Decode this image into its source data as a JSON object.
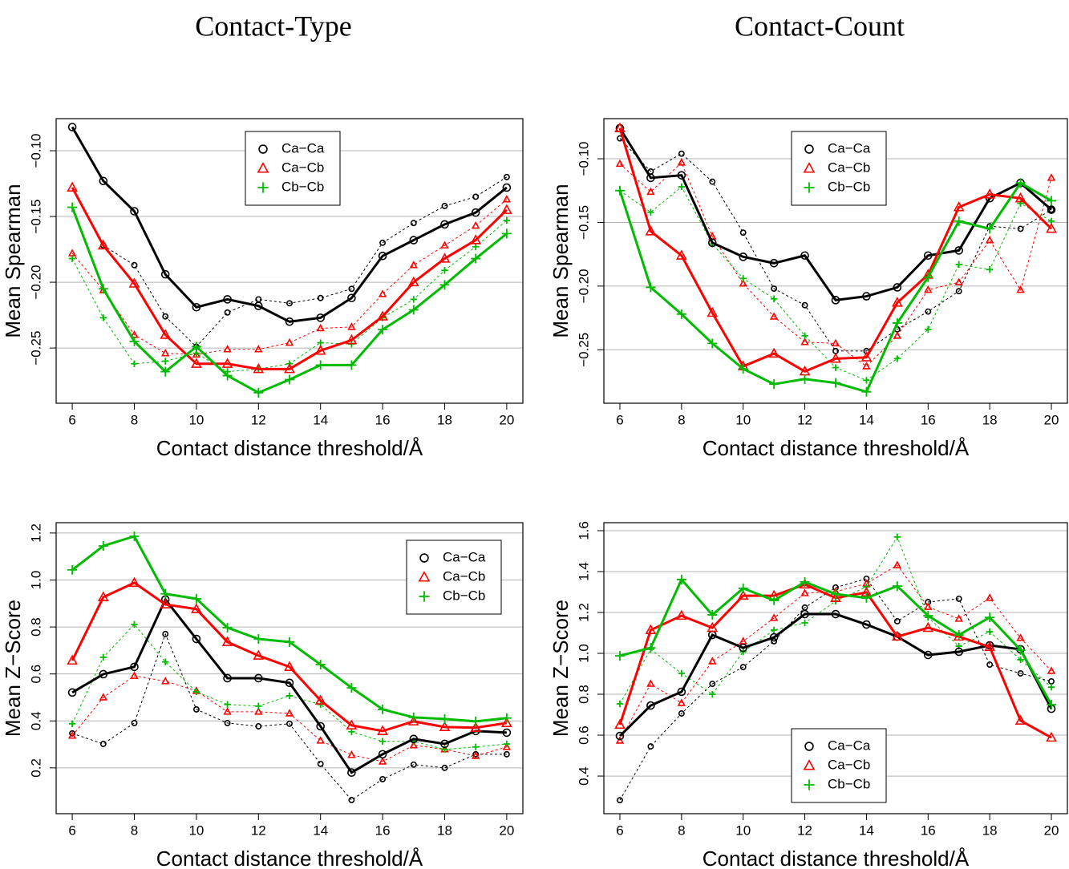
{
  "chart_data": [
    {
      "type": "line",
      "title": "Contact-Type",
      "x_label": "Contact distance threshold/Å",
      "y_label": "Mean Spearman",
      "x": [
        6,
        7,
        8,
        9,
        10,
        11,
        12,
        13,
        14,
        15,
        16,
        17,
        18,
        19,
        20
      ],
      "xlim": [
        5.48,
        20.52
      ],
      "xticks": [
        6,
        8,
        10,
        12,
        14,
        16,
        18,
        20
      ],
      "ylim": [
        -0.292,
        -0.0756
      ],
      "yticks": [
        {
          "value": -0.25,
          "label": "−0.25"
        },
        {
          "value": -0.2,
          "label": "−0.20"
        },
        {
          "value": -0.15,
          "label": "−0.15"
        },
        {
          "value": -0.1,
          "label": "−0.10"
        }
      ],
      "grid": true,
      "legend": "top",
      "series": [
        {
          "name": "Ca−Ca",
          "color": "#000000",
          "marker": "circle",
          "values": [
            -0.082,
            -0.123,
            -0.146,
            -0.194,
            -0.219,
            -0.213,
            -0.218,
            -0.23,
            -0.227,
            -0.212,
            -0.18,
            -0.168,
            -0.156,
            -0.147,
            -0.128
          ],
          "dashed_values": [
            null,
            -0.172,
            -0.187,
            -0.226,
            -0.249,
            -0.223,
            -0.213,
            -0.216,
            -0.212,
            -0.205,
            -0.17,
            -0.155,
            -0.142,
            -0.135,
            -0.12
          ]
        },
        {
          "name": "Ca−Cb",
          "color": "#ff0000",
          "marker": "triangle",
          "values": [
            -0.128,
            -0.172,
            -0.201,
            -0.24,
            -0.262,
            -0.262,
            -0.266,
            -0.266,
            -0.252,
            -0.244,
            -0.226,
            -0.2,
            -0.182,
            -0.168,
            -0.145
          ],
          "dashed_values": [
            -0.178,
            -0.206,
            -0.24,
            -0.254,
            -0.255,
            -0.251,
            -0.251,
            -0.246,
            -0.235,
            -0.234,
            -0.209,
            -0.187,
            -0.172,
            -0.157,
            -0.137
          ]
        },
        {
          "name": "Cb−Cb",
          "color": "#00bb00",
          "marker": "plus",
          "values": [
            -0.143,
            -0.205,
            -0.245,
            -0.268,
            -0.249,
            -0.271,
            -0.284,
            -0.274,
            -0.263,
            -0.263,
            -0.236,
            -0.221,
            -0.202,
            -0.182,
            -0.163
          ],
          "dashed_values": [
            -0.182,
            -0.227,
            -0.262,
            -0.26,
            -0.254,
            -0.268,
            -0.266,
            -0.262,
            -0.246,
            -0.247,
            -0.227,
            -0.213,
            -0.191,
            -0.173,
            -0.153
          ]
        }
      ]
    },
    {
      "type": "line",
      "title": "Contact-Count",
      "x_label": "Contact distance threshold/Å",
      "y_label": "Mean Spearman",
      "x": [
        6,
        7,
        8,
        9,
        10,
        11,
        12,
        13,
        14,
        15,
        16,
        17,
        18,
        19,
        20
      ],
      "xlim": [
        5.48,
        20.52
      ],
      "xticks": [
        6,
        8,
        10,
        12,
        14,
        16,
        18,
        20
      ],
      "ylim": [
        -0.292,
        -0.0685
      ],
      "yticks": [
        {
          "value": -0.25,
          "label": "−0.25"
        },
        {
          "value": -0.2,
          "label": "−0.20"
        },
        {
          "value": -0.15,
          "label": "−0.15"
        },
        {
          "value": -0.1,
          "label": "−0.10"
        }
      ],
      "grid": true,
      "legend": "top",
      "series": [
        {
          "name": "Ca−Ca",
          "color": "#000000",
          "marker": "circle",
          "values": [
            -0.076,
            -0.115,
            -0.113,
            -0.166,
            -0.177,
            -0.182,
            -0.176,
            -0.211,
            -0.208,
            -0.201,
            -0.176,
            -0.172,
            -0.131,
            -0.119,
            -0.14
          ],
          "dashed_values": [
            -0.084,
            -0.11,
            -0.096,
            -0.118,
            -0.158,
            -0.202,
            -0.215,
            -0.251,
            -0.251,
            -0.234,
            -0.22,
            -0.204,
            -0.153,
            -0.155,
            -0.14
          ]
        },
        {
          "name": "Ca−Cb",
          "color": "#ff0000",
          "marker": "triangle",
          "values": [
            -0.076,
            -0.157,
            -0.176,
            -0.221,
            -0.263,
            -0.253,
            -0.267,
            -0.257,
            -0.256,
            -0.213,
            -0.191,
            -0.138,
            -0.128,
            -0.131,
            -0.155
          ],
          "dashed_values": [
            -0.104,
            -0.126,
            -0.103,
            -0.161,
            -0.198,
            -0.224,
            -0.244,
            -0.245,
            -0.263,
            -0.239,
            -0.203,
            -0.197,
            -0.164,
            -0.203,
            -0.115
          ]
        },
        {
          "name": "Cb−Cb",
          "color": "#00bb00",
          "marker": "plus",
          "values": [
            -0.125,
            -0.201,
            -0.222,
            -0.245,
            -0.265,
            -0.277,
            -0.273,
            -0.276,
            -0.283,
            -0.229,
            -0.193,
            -0.149,
            -0.155,
            -0.119,
            -0.133
          ],
          "dashed_values": [
            -0.125,
            -0.142,
            -0.122,
            -0.167,
            -0.194,
            -0.21,
            -0.239,
            -0.264,
            -0.274,
            -0.257,
            -0.234,
            -0.183,
            -0.187,
            -0.135,
            -0.149
          ]
        }
      ]
    },
    {
      "type": "line",
      "x_label": "Contact distance threshold/Å",
      "y_label": "Mean Z−Score",
      "x": [
        6,
        7,
        8,
        9,
        10,
        11,
        12,
        13,
        14,
        15,
        16,
        17,
        18,
        19,
        20
      ],
      "xlim": [
        5.48,
        20.52
      ],
      "xticks": [
        6,
        8,
        10,
        12,
        14,
        16,
        18,
        20
      ],
      "ylim": [
        0.005,
        1.244
      ],
      "yticks": [
        0.2,
        0.4,
        0.6,
        0.8,
        {
          "value": 1,
          "label": "1.0"
        },
        1.2
      ],
      "grid": true,
      "legend": "top-right",
      "series": [
        {
          "name": "Ca−Ca",
          "color": "#000000",
          "marker": "circle",
          "values": [
            0.521,
            0.599,
            0.63,
            0.917,
            0.749,
            0.582,
            0.582,
            0.562,
            0.377,
            0.18,
            0.258,
            0.323,
            0.302,
            0.357,
            0.35
          ],
          "dashed_values": [
            0.347,
            0.302,
            0.391,
            0.77,
            0.449,
            0.391,
            0.377,
            0.388,
            0.217,
            0.063,
            0.152,
            0.214,
            0.2,
            0.258,
            0.258
          ]
        },
        {
          "name": "Ca−Cb",
          "color": "#ff0000",
          "marker": "triangle",
          "values": [
            0.657,
            0.927,
            0.988,
            0.896,
            0.876,
            0.736,
            0.678,
            0.63,
            0.487,
            0.381,
            0.357,
            0.398,
            0.374,
            0.371,
            0.391
          ],
          "dashed_values": [
            0.337,
            0.5,
            0.592,
            0.569,
            0.528,
            0.439,
            0.439,
            0.432,
            0.316,
            0.255,
            0.227,
            0.296,
            0.279,
            0.251,
            0.289
          ]
        },
        {
          "name": "Cb−Cb",
          "color": "#00bb00",
          "marker": "plus",
          "values": [
            1.043,
            1.145,
            1.186,
            0.941,
            0.92,
            0.797,
            0.749,
            0.736,
            0.64,
            0.541,
            0.449,
            0.415,
            0.408,
            0.398,
            0.412
          ],
          "dashed_values": [
            0.388,
            0.671,
            0.811,
            0.651,
            0.524,
            0.47,
            0.463,
            0.507,
            0.47,
            0.354,
            0.313,
            0.313,
            0.279,
            0.289,
            0.302
          ]
        }
      ]
    },
    {
      "type": "line",
      "x_label": "Contact distance threshold/Å",
      "y_label": "Mean Z−Score",
      "x": [
        6,
        7,
        8,
        9,
        10,
        11,
        12,
        13,
        14,
        15,
        16,
        17,
        18,
        19,
        20
      ],
      "xlim": [
        5.48,
        20.52
      ],
      "xticks": [
        6,
        8,
        10,
        12,
        14,
        16,
        18,
        20
      ],
      "ylim": [
        0.216,
        1.639
      ],
      "yticks": [
        0.4,
        0.6,
        0.8,
        {
          "value": 1,
          "label": "1.0"
        },
        1.2,
        1.4,
        1.6
      ],
      "grid": true,
      "legend": "bottom",
      "series": [
        {
          "name": "Ca−Ca",
          "color": "#000000",
          "marker": "circle",
          "values": [
            0.596,
            0.745,
            0.812,
            1.09,
            1.027,
            1.078,
            1.192,
            1.192,
            1.141,
            1.082,
            0.992,
            1.008,
            1.039,
            1.02,
            0.729
          ],
          "dashed_values": [
            0.282,
            0.545,
            0.706,
            0.851,
            0.933,
            1.059,
            1.224,
            1.322,
            1.365,
            1.157,
            1.251,
            1.267,
            0.945,
            0.902,
            0.863
          ]
        },
        {
          "name": "Ca−Cb",
          "color": "#ff0000",
          "marker": "triangle",
          "values": [
            0.651,
            1.114,
            1.184,
            1.125,
            1.282,
            1.282,
            1.337,
            1.271,
            1.298,
            1.082,
            1.125,
            1.082,
            1.031,
            0.671,
            0.588
          ],
          "dashed_values": [
            0.573,
            0.851,
            0.757,
            0.961,
            1.059,
            1.173,
            1.294,
            1.302,
            1.341,
            1.431,
            1.227,
            1.169,
            1.271,
            1.075,
            0.914
          ]
        },
        {
          "name": "Cb−Cb",
          "color": "#00bb00",
          "marker": "plus",
          "values": [
            0.988,
            1.027,
            1.361,
            1.188,
            1.318,
            1.259,
            1.349,
            1.29,
            1.271,
            1.329,
            1.184,
            1.09,
            1.176,
            1.016,
            0.749
          ],
          "dashed_values": [
            0.753,
            1.02,
            0.902,
            0.8,
            1.008,
            1.114,
            1.149,
            1.255,
            1.325,
            1.569,
            1.176,
            1.035,
            1.106,
            0.969,
            0.835
          ]
        }
      ]
    }
  ]
}
